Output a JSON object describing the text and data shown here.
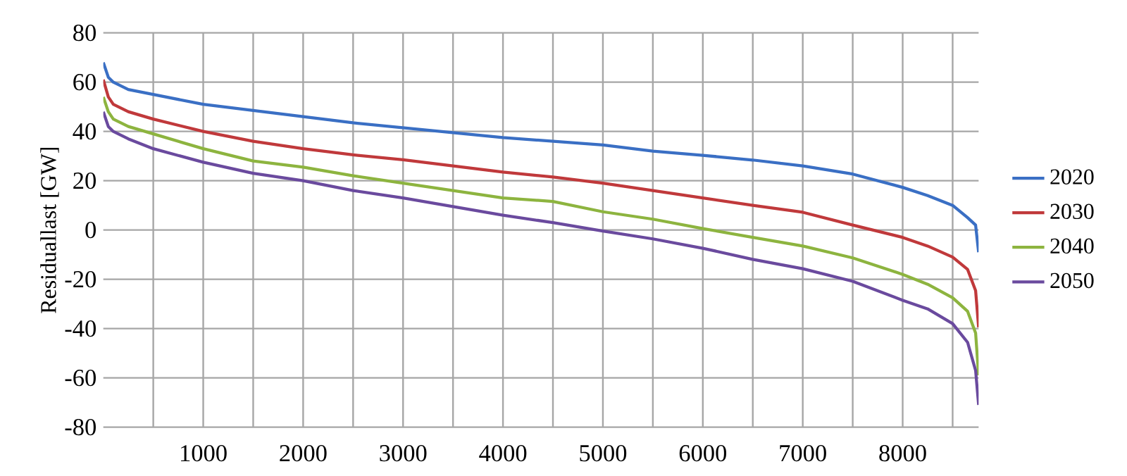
{
  "chart_data": {
    "type": "line",
    "ylabel": "Residuallast [GW]",
    "x": [
      0,
      50,
      100,
      250,
      500,
      1000,
      1500,
      2000,
      2500,
      3000,
      3500,
      4000,
      4500,
      5000,
      5500,
      6000,
      6500,
      7000,
      7500,
      8000,
      8250,
      8500,
      8650,
      8730,
      8760
    ],
    "series": [
      {
        "name": "2020",
        "color": "#3a6fc4",
        "values": [
          68,
          62,
          60,
          57,
          55,
          51,
          48.5,
          46,
          43.5,
          41.5,
          39.5,
          37.5,
          36,
          34.5,
          32,
          30.3,
          28.4,
          26,
          22.7,
          17.3,
          14,
          10,
          5,
          2,
          -9
        ]
      },
      {
        "name": "2030",
        "color": "#c0393b",
        "values": [
          61,
          54,
          51,
          48,
          45,
          40,
          36,
          33,
          30.5,
          28.5,
          26,
          23.5,
          21.5,
          19,
          16,
          13,
          10,
          7.2,
          2,
          -3,
          -6.5,
          -11,
          -16,
          -24.6,
          -39.5
        ]
      },
      {
        "name": "2040",
        "color": "#8db43f",
        "values": [
          54,
          48,
          45,
          42,
          39,
          33,
          28,
          25.5,
          22,
          19,
          16,
          13,
          11.6,
          7.4,
          4.4,
          0.6,
          -3,
          -6.5,
          -11.3,
          -18,
          -22,
          -27.5,
          -33,
          -41.8,
          -59
        ]
      },
      {
        "name": "2050",
        "color": "#6a4a9e",
        "values": [
          48,
          42,
          40,
          37,
          33,
          27.5,
          23,
          20,
          16,
          13,
          9.5,
          6,
          3,
          -0.4,
          -3.6,
          -7.4,
          -11.9,
          -15.7,
          -20.8,
          -28.5,
          -32,
          -38,
          -45.6,
          -57,
          -71
        ]
      }
    ],
    "xlim": [
      0,
      8760
    ],
    "xticks": [
      {
        "value": 500,
        "label": null
      },
      1000,
      {
        "value": 1500,
        "label": null
      },
      2000,
      {
        "value": 2500,
        "label": null
      },
      3000,
      {
        "value": 3500,
        "label": null
      },
      4000,
      {
        "value": 4500,
        "label": null
      },
      5000,
      {
        "value": 5500,
        "label": null
      },
      6000,
      {
        "value": 6500,
        "label": null
      },
      7000,
      {
        "value": 7500,
        "label": null
      },
      8000,
      {
        "value": 8500,
        "label": null
      }
    ],
    "ylim": [
      -80,
      80
    ],
    "yticks": [
      -80,
      -60,
      -40,
      -20,
      0,
      20,
      40,
      60,
      80
    ],
    "grid": true,
    "legend": "right",
    "marker": "none",
    "line_style": "solid"
  }
}
